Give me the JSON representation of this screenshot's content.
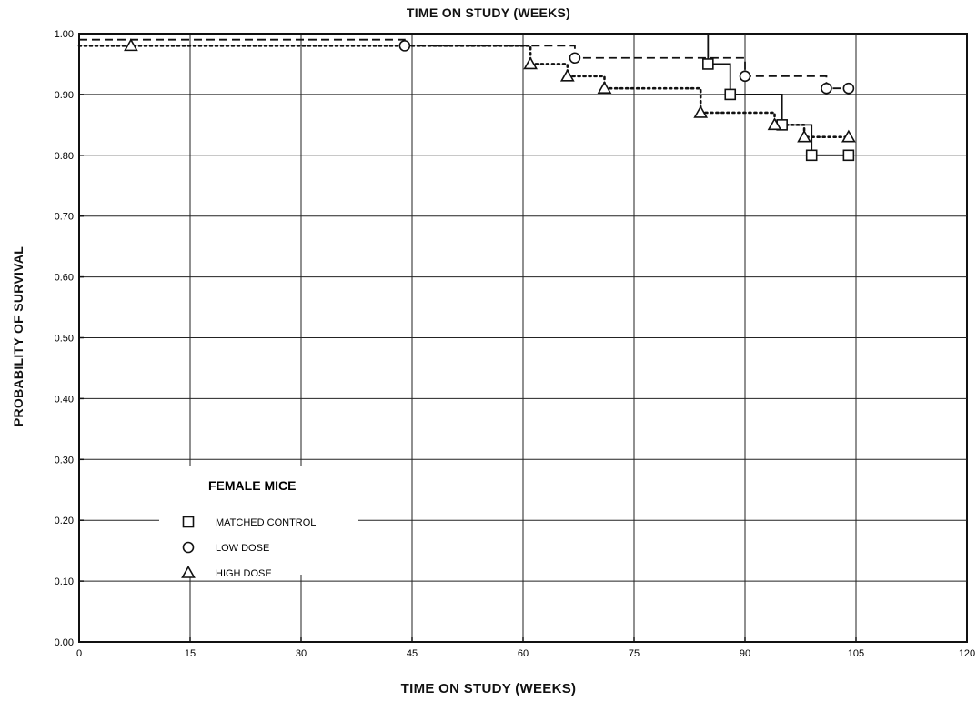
{
  "chart_data": {
    "type": "line",
    "step": true,
    "title": "TIME ON STUDY (WEEKS)",
    "xlabel": "TIME ON STUDY (WEEKS)",
    "ylabel": "PROBABILITY OF SURVIVAL",
    "xlim": [
      0,
      120
    ],
    "ylim": [
      0.0,
      1.0
    ],
    "x_ticks": [
      "0",
      "15",
      "30",
      "45",
      "60",
      "75",
      "90",
      "105",
      "120"
    ],
    "y_ticks": [
      "0.00",
      "0.10",
      "0.20",
      "0.30",
      "0.40",
      "0.50",
      "0.60",
      "0.70",
      "0.80",
      "0.90",
      "1.00"
    ],
    "grid": true,
    "legend": {
      "title": "FEMALE MICE",
      "position": "lower-left",
      "entries": [
        {
          "label": "MATCHED CONTROL",
          "marker": "square",
          "line": "solid"
        },
        {
          "label": "LOW DOSE",
          "marker": "circle",
          "line": "dashed"
        },
        {
          "label": "HIGH DOSE",
          "marker": "triangle",
          "line": "dotted"
        }
      ]
    },
    "series": [
      {
        "name": "MATCHED CONTROL",
        "marker": "square",
        "line": "solid",
        "x": [
          0,
          85,
          88,
          95,
          99,
          104
        ],
        "y": [
          1.0,
          0.95,
          0.9,
          0.85,
          0.8,
          0.8
        ]
      },
      {
        "name": "LOW DOSE",
        "marker": "circle",
        "line": "dashed",
        "x": [
          0,
          44,
          67,
          90,
          101,
          104
        ],
        "y": [
          0.99,
          0.98,
          0.96,
          0.93,
          0.91,
          0.91
        ]
      },
      {
        "name": "HIGH DOSE",
        "marker": "triangle",
        "line": "dotted",
        "x": [
          0,
          7,
          61,
          66,
          71,
          84,
          94,
          98,
          104
        ],
        "y": [
          0.98,
          0.98,
          0.95,
          0.93,
          0.91,
          0.87,
          0.85,
          0.83,
          0.83
        ]
      }
    ]
  }
}
